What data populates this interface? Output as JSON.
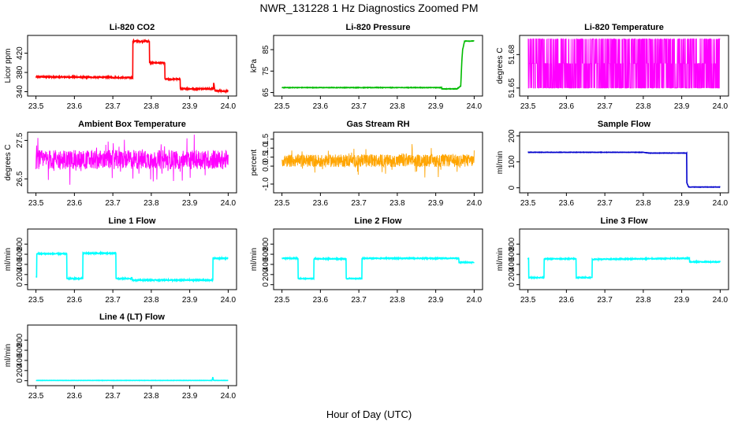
{
  "title": "NWR_131228  1 Hz Diagnostics Zoomed PM",
  "x_axis_title": "Hour of Day (UTC)",
  "chart_data": [
    {
      "type": "line",
      "title": "Li-820 CO2",
      "ylabel": "Licor ppm",
      "color": "#ff0000",
      "xlim": [
        23.5,
        24.0
      ],
      "ylim": [
        336,
        452
      ],
      "x_ticks": [
        "23.5",
        "23.6",
        "23.7",
        "23.8",
        "23.9",
        "24.0"
      ],
      "y_ticks": [
        340,
        380,
        420
      ],
      "series": [
        {
          "x": [
            23.5,
            23.655,
            23.655,
            23.752,
            23.752,
            23.795,
            23.795,
            23.835,
            23.835,
            23.875,
            23.875,
            23.962,
            23.962,
            23.965,
            23.965,
            24.0
          ],
          "y": [
            371,
            370,
            370,
            369,
            445,
            445,
            400,
            400,
            366,
            366,
            346,
            346,
            360,
            346,
            342,
            341
          ]
        }
      ],
      "noise": 1.2
    },
    {
      "type": "line",
      "title": "Li-820 Pressure",
      "ylabel": "kPa",
      "color": "#00bb00",
      "xlim": [
        23.5,
        24.0
      ],
      "ylim": [
        64.5,
        90.5
      ],
      "x_ticks": [
        "23.5",
        "23.6",
        "23.7",
        "23.8",
        "23.9",
        "24.0"
      ],
      "y_ticks": [
        65,
        75,
        85
      ],
      "series": [
        {
          "x": [
            23.5,
            23.915,
            23.915,
            23.955,
            23.965,
            23.968,
            23.97,
            23.975,
            24.0
          ],
          "y": [
            67.3,
            67.3,
            66.7,
            66.7,
            68,
            80,
            85,
            89,
            89
          ]
        }
      ],
      "noise": 0.1
    },
    {
      "type": "line",
      "title": "Li-820 Temperature",
      "ylabel": "degrees C",
      "color": "#ff00ff",
      "xlim": [
        23.5,
        24.0
      ],
      "ylim": [
        51.645,
        51.695
      ],
      "x_ticks": [
        "23.5",
        "23.6",
        "23.7",
        "23.8",
        "23.9",
        "24.0"
      ],
      "y_ticks": [
        51.65,
        51.68
      ],
      "y_tick_labels": [
        "51.65",
        "51.68"
      ],
      "digital_levels": [
        51.65,
        51.672,
        51.694
      ],
      "noise": 0
    },
    {
      "type": "line",
      "title": "Ambient Box Temperature",
      "ylabel": "degrees C",
      "color": "#ff00ff",
      "xlim": [
        23.5,
        24.0
      ],
      "ylim": [
        26.2,
        27.65
      ],
      "x_ticks": [
        "23.5",
        "23.6",
        "23.7",
        "23.8",
        "23.9",
        "24.0"
      ],
      "y_ticks": [
        26.5,
        27.5
      ],
      "y_tick_labels": [
        "26.5",
        "27.5"
      ],
      "band_center": 27.0,
      "band_halfwidth": 0.25,
      "noise": 0.3
    },
    {
      "type": "line",
      "title": "Gas Stream RH",
      "ylabel": "percent",
      "color": "#ffa500",
      "xlim": [
        23.5,
        24.0
      ],
      "ylim": [
        -1.35,
        1.75
      ],
      "x_ticks": [
        "23.5",
        "23.6",
        "23.7",
        "23.8",
        "23.9",
        "24.0"
      ],
      "y_ticks": [
        -1.0,
        0.0,
        0.5,
        1.0,
        1.5
      ],
      "y_tick_labels": [
        "-1.0",
        "0.0",
        "0.5",
        "1.0",
        "1.5"
      ],
      "band_center": 0.3,
      "band_halfwidth": 0.35,
      "noise": 0.35
    },
    {
      "type": "line",
      "title": "Sample Flow",
      "ylabel": "ml/min",
      "color": "#0000cc",
      "xlim": [
        23.5,
        24.0
      ],
      "ylim": [
        -10,
        205
      ],
      "x_ticks": [
        "23.5",
        "23.6",
        "23.7",
        "23.8",
        "23.9",
        "24.0"
      ],
      "y_ticks": [
        0,
        100,
        200
      ],
      "series": [
        {
          "x": [
            23.5,
            23.8,
            23.815,
            23.913,
            23.913,
            23.918,
            24.0
          ],
          "y": [
            137,
            137,
            134,
            134,
            20,
            3,
            3
          ]
        }
      ],
      "noise": 0.6
    },
    {
      "type": "line",
      "title": "Line 1 Flow",
      "ylabel": "ml/min",
      "color": "#00ffff",
      "xlim": [
        23.5,
        24.0
      ],
      "ylim": [
        -50,
        1050
      ],
      "x_ticks": [
        "23.5",
        "23.6",
        "23.7",
        "23.8",
        "23.9",
        "24.0"
      ],
      "y_ticks": [
        0,
        200,
        400,
        600,
        800
      ],
      "series": [
        {
          "x": [
            23.5,
            23.502,
            23.502,
            23.58,
            23.58,
            23.622,
            23.622,
            23.708,
            23.708,
            23.75,
            23.75,
            23.96,
            23.96,
            24.0
          ],
          "y": [
            150,
            150,
            610,
            610,
            120,
            120,
            620,
            620,
            120,
            120,
            90,
            90,
            520,
            520
          ]
        }
      ],
      "noise": 10
    },
    {
      "type": "line",
      "title": "Line 2 Flow",
      "ylabel": "ml/min",
      "color": "#00ffff",
      "xlim": [
        23.5,
        24.0
      ],
      "ylim": [
        -50,
        1050
      ],
      "x_ticks": [
        "23.5",
        "23.6",
        "23.7",
        "23.8",
        "23.9",
        "24.0"
      ],
      "y_ticks": [
        0,
        200,
        400,
        600,
        800
      ],
      "series": [
        {
          "x": [
            23.5,
            23.542,
            23.542,
            23.583,
            23.583,
            23.667,
            23.667,
            23.708,
            23.708,
            23.96,
            23.96,
            24.0
          ],
          "y": [
            520,
            520,
            120,
            120,
            510,
            510,
            120,
            120,
            520,
            520,
            440,
            440
          ]
        }
      ],
      "noise": 8
    },
    {
      "type": "line",
      "title": "Line 3 Flow",
      "ylabel": "ml/min",
      "color": "#00ffff",
      "xlim": [
        23.5,
        24.0
      ],
      "ylim": [
        -50,
        1050
      ],
      "x_ticks": [
        "23.5",
        "23.6",
        "23.7",
        "23.8",
        "23.9",
        "24.0"
      ],
      "y_ticks": [
        0,
        200,
        400,
        600,
        800
      ],
      "series": [
        {
          "x": [
            23.5,
            23.502,
            23.502,
            23.542,
            23.542,
            23.625,
            23.625,
            23.667,
            23.667,
            23.8,
            23.92,
            23.92,
            24.0
          ],
          "y": [
            520,
            520,
            140,
            140,
            510,
            510,
            140,
            140,
            500,
            510,
            520,
            450,
            450
          ]
        }
      ],
      "noise": 8
    },
    {
      "type": "line",
      "title": "Line 4 (LT) Flow",
      "ylabel": "ml/min",
      "color": "#00ffff",
      "xlim": [
        23.5,
        24.0
      ],
      "ylim": [
        -50,
        1050
      ],
      "x_ticks": [
        "23.5",
        "23.6",
        "23.7",
        "23.8",
        "23.9",
        "24.0"
      ],
      "y_ticks": [
        0,
        200,
        400,
        600,
        800
      ],
      "series": [
        {
          "x": [
            23.5,
            23.958,
            23.96,
            23.962,
            24.0
          ],
          "y": [
            5,
            5,
            70,
            5,
            5
          ]
        }
      ],
      "noise": 2
    }
  ]
}
